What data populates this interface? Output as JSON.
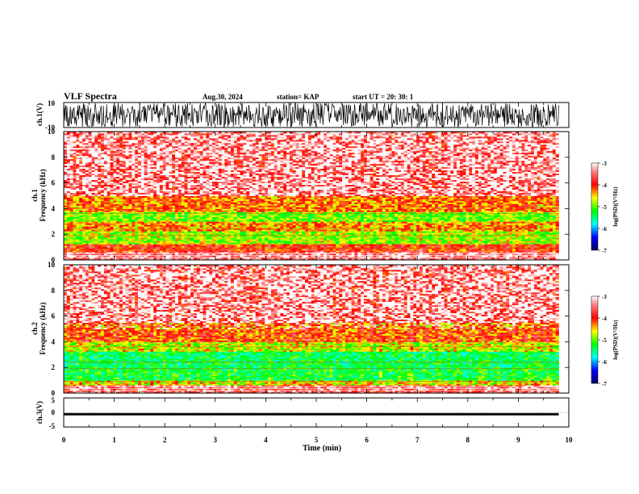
{
  "header": {
    "title": "VLF Spectra",
    "date": "Aug.30, 2024",
    "station": "station= KAP",
    "start_ut": "start  UT  =    20: 30: 1"
  },
  "chart_data": [
    {
      "type": "line",
      "name": "ch1-waveform",
      "ylabel": "ch.1(V)",
      "ylim": [
        -10,
        10
      ],
      "yticks": [
        "10",
        "-10"
      ],
      "xlim": [
        0,
        10
      ],
      "description_values": "dense noise waveform spanning roughly -10 to 10 V until ~9.8 min"
    },
    {
      "type": "heatmap",
      "name": "ch1-spectrogram",
      "ylabel": "ch.1\nFrequency (kHz)",
      "ylim": [
        0,
        10
      ],
      "yticks": [
        "0",
        "2",
        "4",
        "6",
        "8",
        "10"
      ],
      "xlim": [
        0,
        10
      ],
      "data_end_min": 9.8,
      "bands_log_psd": [
        {
          "f_from": 0,
          "f_to": 0.6,
          "level": -3.2
        },
        {
          "f_from": 0.6,
          "f_to": 1.2,
          "level": -3.6
        },
        {
          "f_from": 1.2,
          "f_to": 2.2,
          "level": -4.3
        },
        {
          "f_from": 2.2,
          "f_to": 3.0,
          "level": -3.9
        },
        {
          "f_from": 3.0,
          "f_to": 3.8,
          "level": -4.4
        },
        {
          "f_from": 3.8,
          "f_to": 5.0,
          "level": -3.8
        },
        {
          "f_from": 5.0,
          "f_to": 10.0,
          "level": -3.1
        }
      ],
      "colorbar": {
        "label": "log(PSD)(V²/Hz)",
        "ticks": [
          "-3",
          "-4",
          "-5",
          "-6",
          "-7"
        ],
        "range": [
          -7,
          -3
        ]
      }
    },
    {
      "type": "heatmap",
      "name": "ch2-spectrogram",
      "ylabel": "ch.2\nFrequency (kHz)",
      "ylim": [
        0,
        10
      ],
      "yticks": [
        "0",
        "2",
        "4",
        "6",
        "8",
        "10"
      ],
      "xlim": [
        0,
        10
      ],
      "data_end_min": 9.8,
      "bands_log_psd": [
        {
          "f_from": 0,
          "f_to": 0.6,
          "level": -3.3
        },
        {
          "f_from": 0.6,
          "f_to": 1.0,
          "level": -4.1
        },
        {
          "f_from": 1.0,
          "f_to": 2.0,
          "level": -4.7
        },
        {
          "f_from": 2.0,
          "f_to": 3.2,
          "level": -4.8
        },
        {
          "f_from": 3.2,
          "f_to": 4.0,
          "level": -4.2
        },
        {
          "f_from": 4.0,
          "f_to": 5.5,
          "level": -3.7
        },
        {
          "f_from": 5.5,
          "f_to": 10.0,
          "level": -3.1
        }
      ],
      "colorbar": {
        "label": "log(PSD)(V²/Hz)",
        "ticks": [
          "-3",
          "-4",
          "-5",
          "-6",
          "-7"
        ],
        "range": [
          -7,
          -3
        ]
      }
    },
    {
      "type": "line",
      "name": "ch3-waveform",
      "ylabel": "ch.3(V)",
      "ylim": [
        -5,
        5
      ],
      "yticks": [
        "5",
        "0",
        "-5"
      ],
      "xlim": [
        0,
        10
      ],
      "description_values": "narrow dense trace between about -1 and -0.2 V until ~9.8 min"
    }
  ],
  "xaxis": {
    "label": "Time (min)",
    "ticks": [
      "0",
      "1",
      "2",
      "3",
      "4",
      "5",
      "6",
      "7",
      "8",
      "9",
      "10"
    ]
  },
  "colors": {
    "scale": [
      "#000080",
      "#0000ff",
      "#00ffff",
      "#00ff00",
      "#ffff00",
      "#ff0000",
      "#ffffff"
    ]
  }
}
